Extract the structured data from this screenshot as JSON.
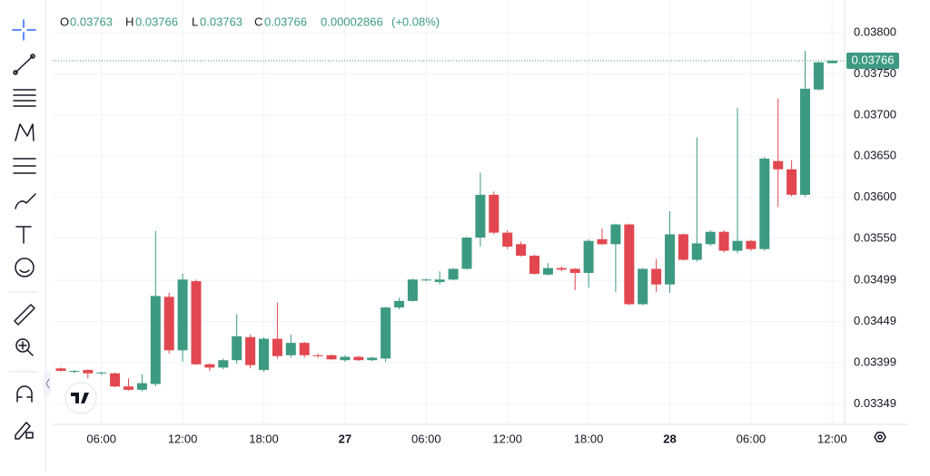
{
  "chart_data": {
    "type": "candlestick",
    "categories": [
      null,
      null,
      null,
      "06:00",
      null,
      null,
      null,
      null,
      null,
      "12:00",
      null,
      null,
      null,
      null,
      null,
      "18:00",
      null,
      null,
      null,
      null,
      null,
      "27",
      null,
      null,
      null,
      null,
      null,
      "06:00",
      null,
      null,
      null,
      null,
      null,
      "12:00",
      null,
      null,
      null,
      null,
      null,
      "18:00",
      null,
      null,
      null,
      null,
      null,
      "28",
      null,
      null,
      null,
      null,
      null,
      "06:00",
      null,
      null,
      null,
      null,
      null,
      "12:00"
    ],
    "open": [
      0.03392,
      0.03388,
      0.0339,
      0.03386,
      0.03386,
      0.0337,
      0.03366,
      0.03373,
      0.03479,
      0.03414,
      0.03498,
      0.03397,
      0.03393,
      0.03402,
      0.0343,
      0.0339,
      0.03428,
      0.03408,
      0.03423,
      0.03408,
      0.03408,
      0.03402,
      0.03406,
      0.03402,
      0.03404,
      0.03466,
      0.03474,
      0.03499,
      0.03497,
      0.035,
      0.03513,
      0.03551,
      0.03603,
      0.03557,
      0.03543,
      0.03529,
      0.03506,
      0.03514,
      0.03513,
      0.03508,
      0.03549,
      0.03543,
      0.03567,
      0.0347,
      0.03513,
      0.03494,
      0.03555,
      0.03524,
      0.03543,
      0.03558,
      0.03535,
      0.03547,
      0.03537,
      0.03644,
      0.03634,
      0.03603,
      0.03731,
      0.03763
    ],
    "high": [
      0.03393,
      0.0339,
      0.03391,
      0.03388,
      0.03387,
      0.0338,
      0.03385,
      0.03559,
      0.03484,
      0.03507,
      0.035,
      0.03398,
      0.03404,
      0.03458,
      0.03433,
      0.0343,
      0.03472,
      0.03433,
      0.03424,
      0.0341,
      0.03409,
      0.03408,
      0.03407,
      0.03406,
      0.03467,
      0.03478,
      0.03501,
      0.03501,
      0.0351,
      0.03514,
      0.03552,
      0.0363,
      0.03607,
      0.0356,
      0.03546,
      0.0353,
      0.0352,
      0.03516,
      0.03514,
      0.03549,
      0.03562,
      0.03568,
      0.03568,
      0.03514,
      0.03525,
      0.03583,
      0.03556,
      0.03673,
      0.0356,
      0.0356,
      0.03709,
      0.03548,
      0.03649,
      0.0372,
      0.03645,
      0.03778,
      0.03765,
      0.03766
    ],
    "low": [
      0.03388,
      0.03386,
      0.0338,
      0.03384,
      0.03369,
      0.03365,
      0.03364,
      0.0337,
      0.0341,
      0.034,
      0.03396,
      0.03389,
      0.03391,
      0.03398,
      0.03392,
      0.03388,
      0.03404,
      0.03405,
      0.03405,
      0.03405,
      0.03402,
      0.034,
      0.03401,
      0.03401,
      0.034,
      0.03464,
      0.03473,
      0.03498,
      0.03494,
      0.03499,
      0.03512,
      0.0354,
      0.03555,
      0.03537,
      0.03528,
      0.03506,
      0.03505,
      0.0351,
      0.03487,
      0.0349,
      0.03542,
      0.03485,
      0.03469,
      0.03469,
      0.03485,
      0.03484,
      0.03523,
      0.03522,
      0.03541,
      0.03533,
      0.03532,
      0.03535,
      0.03535,
      0.03588,
      0.03601,
      0.03601,
      0.0373,
      0.03763
    ],
    "close": [
      0.03389,
      0.03389,
      0.03386,
      0.03387,
      0.0337,
      0.03366,
      0.03374,
      0.0348,
      0.03414,
      0.035,
      0.03397,
      0.03393,
      0.03402,
      0.03431,
      0.03396,
      0.03428,
      0.03407,
      0.03423,
      0.03408,
      0.03407,
      0.03403,
      0.03406,
      0.03402,
      0.03405,
      0.03466,
      0.03474,
      0.035,
      0.035,
      0.035,
      0.03513,
      0.03551,
      0.03603,
      0.03557,
      0.0354,
      0.03529,
      0.03507,
      0.03514,
      0.03512,
      0.03508,
      0.03547,
      0.03543,
      0.03567,
      0.0347,
      0.03513,
      0.03494,
      0.03555,
      0.03524,
      0.03544,
      0.03558,
      0.03535,
      0.03547,
      0.03537,
      0.03647,
      0.03634,
      0.03603,
      0.03732,
      0.03764,
      0.03766
    ],
    "up_color": "#3d9a82",
    "down_color": "#e2474f",
    "ylim": [
      0.03324,
      0.03831
    ],
    "yticks": [
      {
        "value": 0.038,
        "label": "0.03800"
      },
      {
        "value": 0.0375,
        "label": "0.03750"
      },
      {
        "value": 0.037,
        "label": "0.03700"
      },
      {
        "value": 0.0365,
        "label": "0.03650"
      },
      {
        "value": 0.036,
        "label": "0.03600"
      },
      {
        "value": 0.0355,
        "label": "0.03550"
      },
      0.03499,
      0.03449,
      0.03399,
      0.03349
    ],
    "grid": true,
    "legend": {
      "open": "O",
      "high": "H",
      "low": "L",
      "close": "C",
      "change": 2.866e-05,
      "change_pct": "(+0.08%)"
    }
  }
}
